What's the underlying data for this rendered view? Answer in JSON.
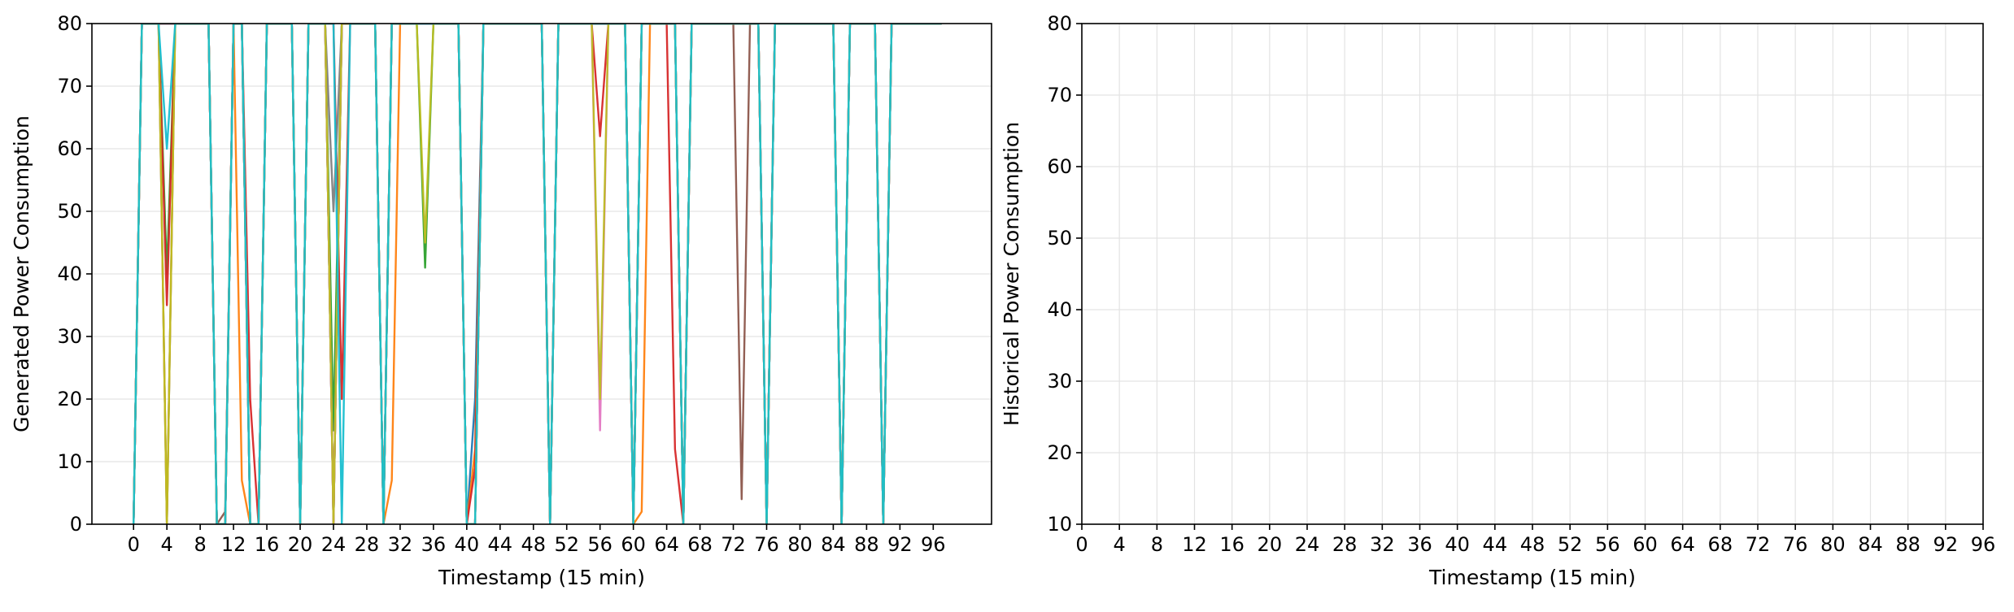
{
  "chart_data": [
    {
      "type": "line",
      "xlabel": "Timestamp (15 min)",
      "ylabel": "Generated Power Consumption",
      "xlim": [
        -5,
        103
      ],
      "ylim": [
        0,
        80
      ],
      "xticks": [
        0,
        4,
        8,
        12,
        16,
        20,
        24,
        28,
        32,
        36,
        40,
        44,
        48,
        52,
        56,
        60,
        64,
        68,
        72,
        76,
        80,
        84,
        88,
        92,
        96
      ],
      "yticks": [
        0,
        10,
        20,
        30,
        40,
        50,
        60,
        70,
        80
      ],
      "grid": true,
      "colors": [
        "#1f77b4",
        "#ff7f0e",
        "#2ca02c",
        "#d62728",
        "#9467bd",
        "#8c564b",
        "#e377c2",
        "#7f7f7f",
        "#bcbd22",
        "#17becf"
      ],
      "series": [
        {
          "values": [
            0,
            80,
            80,
            80,
            0,
            80,
            80,
            80,
            80,
            80,
            0,
            0,
            80,
            80,
            0,
            0,
            80,
            80,
            80,
            80,
            0,
            80,
            80,
            80,
            0,
            80,
            80,
            80,
            80,
            80,
            0,
            80,
            80,
            80,
            80,
            80,
            80,
            80,
            80,
            80,
            0,
            20,
            80,
            80,
            80,
            80,
            80,
            80,
            80,
            80,
            0,
            80,
            80,
            80,
            80,
            80,
            80,
            80,
            80,
            80,
            0,
            80,
            80,
            80,
            80,
            80,
            0,
            80,
            80,
            80,
            80,
            80,
            80,
            80,
            80,
            80,
            0,
            80,
            80,
            80,
            80,
            80,
            80,
            80,
            80,
            0,
            80,
            80,
            80,
            80,
            0,
            80,
            80,
            80,
            80,
            80,
            80,
            80
          ]
        },
        {
          "values": [
            0,
            80,
            80,
            80,
            0,
            80,
            80,
            80,
            80,
            80,
            0,
            0,
            80,
            7,
            0,
            0,
            80,
            80,
            80,
            80,
            0,
            80,
            80,
            80,
            0,
            80,
            80,
            80,
            80,
            80,
            0,
            7,
            80,
            80,
            80,
            80,
            80,
            80,
            80,
            80,
            0,
            12,
            80,
            80,
            80,
            80,
            80,
            80,
            80,
            80,
            0,
            80,
            80,
            80,
            80,
            80,
            80,
            80,
            80,
            80,
            0,
            2,
            80,
            80,
            80,
            80,
            0,
            80,
            80,
            80,
            80,
            80,
            80,
            80,
            80,
            80,
            0,
            80,
            80,
            80,
            80,
            80,
            80,
            80,
            80,
            0,
            80,
            80,
            80,
            80,
            0,
            80,
            80,
            80,
            80,
            80,
            80,
            80
          ]
        },
        {
          "values": [
            0,
            80,
            80,
            80,
            40,
            80,
            80,
            80,
            80,
            80,
            0,
            0,
            80,
            80,
            0,
            0,
            80,
            80,
            80,
            80,
            0,
            80,
            80,
            80,
            15,
            80,
            80,
            80,
            80,
            80,
            0,
            80,
            80,
            80,
            80,
            41,
            80,
            80,
            80,
            80,
            0,
            0,
            80,
            80,
            80,
            80,
            80,
            80,
            80,
            80,
            0,
            80,
            80,
            80,
            80,
            80,
            80,
            80,
            80,
            80,
            0,
            80,
            80,
            80,
            80,
            80,
            0,
            80,
            80,
            80,
            80,
            80,
            80,
            80,
            80,
            80,
            0,
            80,
            80,
            80,
            80,
            80,
            80,
            80,
            80,
            0,
            80,
            80,
            80,
            80,
            0,
            80,
            80,
            80,
            80,
            80,
            80,
            80
          ]
        },
        {
          "values": [
            0,
            80,
            80,
            80,
            35,
            80,
            80,
            80,
            80,
            80,
            0,
            0,
            80,
            80,
            20,
            0,
            80,
            80,
            80,
            80,
            0,
            80,
            80,
            80,
            80,
            20,
            80,
            80,
            80,
            80,
            0,
            80,
            80,
            80,
            80,
            80,
            80,
            80,
            80,
            80,
            0,
            9,
            80,
            80,
            80,
            80,
            80,
            80,
            80,
            80,
            0,
            80,
            80,
            80,
            80,
            80,
            62,
            80,
            80,
            80,
            0,
            80,
            80,
            80,
            80,
            12,
            0,
            80,
            80,
            80,
            80,
            80,
            80,
            80,
            80,
            80,
            0,
            80,
            80,
            80,
            80,
            80,
            80,
            80,
            80,
            0,
            80,
            80,
            80,
            80,
            0,
            80,
            80,
            80,
            80,
            80,
            80,
            80
          ]
        },
        {
          "values": [
            0,
            80,
            80,
            80,
            80,
            80,
            80,
            80,
            80,
            80,
            0,
            0,
            80,
            80,
            0,
            0,
            80,
            80,
            80,
            80,
            0,
            80,
            80,
            80,
            0,
            80,
            80,
            80,
            80,
            80,
            0,
            80,
            80,
            80,
            80,
            80,
            80,
            80,
            80,
            80,
            0,
            0,
            80,
            80,
            80,
            80,
            80,
            80,
            80,
            80,
            0,
            80,
            80,
            80,
            80,
            80,
            80,
            80,
            80,
            80,
            0,
            80,
            80,
            80,
            80,
            80,
            0,
            80,
            80,
            80,
            80,
            80,
            80,
            80,
            80,
            80,
            0,
            80,
            80,
            80,
            80,
            80,
            80,
            80,
            80,
            0,
            80,
            80,
            80,
            80,
            0,
            80,
            80,
            80,
            80,
            80,
            80,
            80
          ]
        },
        {
          "values": [
            0,
            80,
            80,
            80,
            80,
            80,
            80,
            80,
            80,
            80,
            0,
            2,
            80,
            80,
            0,
            0,
            80,
            80,
            80,
            80,
            0,
            80,
            80,
            80,
            0,
            80,
            80,
            80,
            80,
            80,
            0,
            80,
            80,
            80,
            80,
            80,
            80,
            80,
            80,
            80,
            0,
            0,
            80,
            80,
            80,
            80,
            80,
            80,
            80,
            80,
            0,
            80,
            80,
            80,
            80,
            80,
            80,
            80,
            80,
            80,
            0,
            80,
            80,
            80,
            80,
            80,
            0,
            80,
            80,
            80,
            80,
            80,
            80,
            4,
            80,
            80,
            0,
            80,
            80,
            80,
            80,
            80,
            80,
            80,
            80,
            0,
            80,
            80,
            80,
            80,
            0,
            80,
            80,
            80,
            80,
            80,
            80,
            80
          ]
        },
        {
          "values": [
            0,
            80,
            80,
            80,
            80,
            80,
            80,
            80,
            80,
            80,
            0,
            0,
            80,
            80,
            0,
            0,
            80,
            80,
            80,
            80,
            0,
            80,
            80,
            80,
            0,
            80,
            80,
            80,
            80,
            80,
            0,
            80,
            80,
            80,
            80,
            80,
            80,
            80,
            80,
            80,
            0,
            0,
            80,
            80,
            80,
            80,
            80,
            80,
            80,
            80,
            0,
            80,
            80,
            80,
            80,
            80,
            15,
            80,
            80,
            80,
            0,
            80,
            80,
            80,
            80,
            80,
            0,
            80,
            80,
            80,
            80,
            80,
            80,
            80,
            80,
            80,
            0,
            80,
            80,
            80,
            80,
            80,
            80,
            80,
            80,
            0,
            80,
            80,
            80,
            80,
            0,
            80,
            80,
            80,
            80,
            80,
            80,
            80
          ]
        },
        {
          "values": [
            0,
            80,
            80,
            80,
            80,
            80,
            80,
            80,
            80,
            80,
            0,
            0,
            80,
            80,
            0,
            0,
            80,
            80,
            80,
            80,
            0,
            80,
            80,
            80,
            50,
            80,
            80,
            80,
            80,
            80,
            0,
            80,
            80,
            80,
            80,
            80,
            80,
            80,
            80,
            80,
            0,
            0,
            80,
            80,
            80,
            80,
            80,
            80,
            80,
            80,
            0,
            80,
            80,
            80,
            80,
            80,
            80,
            80,
            80,
            80,
            0,
            80,
            80,
            80,
            80,
            80,
            0,
            80,
            80,
            80,
            80,
            80,
            80,
            80,
            80,
            80,
            0,
            80,
            80,
            80,
            80,
            80,
            80,
            80,
            80,
            0,
            80,
            80,
            80,
            80,
            0,
            80,
            80,
            80,
            80,
            80,
            80,
            80
          ]
        },
        {
          "values": [
            0,
            80,
            80,
            80,
            0,
            80,
            80,
            80,
            80,
            80,
            0,
            0,
            80,
            80,
            0,
            0,
            80,
            80,
            80,
            80,
            0,
            80,
            80,
            80,
            0,
            80,
            80,
            80,
            80,
            80,
            0,
            80,
            80,
            80,
            80,
            45,
            80,
            80,
            80,
            80,
            0,
            0,
            80,
            80,
            80,
            80,
            80,
            80,
            80,
            80,
            0,
            80,
            80,
            80,
            80,
            80,
            20,
            80,
            80,
            80,
            0,
            80,
            80,
            80,
            80,
            80,
            0,
            80,
            80,
            80,
            80,
            80,
            80,
            80,
            80,
            80,
            0,
            80,
            80,
            80,
            80,
            80,
            80,
            80,
            80,
            0,
            80,
            80,
            80,
            80,
            0,
            80,
            80,
            80,
            80,
            80,
            80,
            80
          ]
        },
        {
          "values": [
            0,
            80,
            80,
            80,
            60,
            80,
            80,
            80,
            80,
            80,
            0,
            0,
            80,
            80,
            0,
            0,
            80,
            80,
            80,
            80,
            0,
            80,
            80,
            80,
            80,
            0,
            80,
            80,
            80,
            80,
            0,
            80,
            80,
            80,
            80,
            80,
            80,
            80,
            80,
            80,
            0,
            0,
            80,
            80,
            80,
            80,
            80,
            80,
            80,
            80,
            0,
            80,
            80,
            80,
            80,
            80,
            80,
            80,
            80,
            80,
            0,
            80,
            80,
            80,
            80,
            80,
            0,
            80,
            80,
            80,
            80,
            80,
            80,
            80,
            80,
            80,
            0,
            80,
            80,
            80,
            80,
            80,
            80,
            80,
            80,
            0,
            80,
            80,
            80,
            80,
            0,
            80,
            80,
            80,
            80,
            80,
            80,
            80
          ]
        }
      ]
    },
    {
      "type": "line",
      "xlabel": "Timestamp (15 min)",
      "ylabel": "Historical Power Consumption",
      "xlim": [
        0,
        96
      ],
      "ylim": [
        10,
        80
      ],
      "xticks": [
        0,
        4,
        8,
        12,
        16,
        20,
        24,
        28,
        32,
        36,
        40,
        44,
        48,
        52,
        56,
        60,
        64,
        68,
        72,
        76,
        80,
        84,
        88,
        92,
        96
      ],
      "yticks": [
        10,
        20,
        30,
        40,
        50,
        60,
        70,
        80
      ],
      "grid": true,
      "series": []
    }
  ]
}
